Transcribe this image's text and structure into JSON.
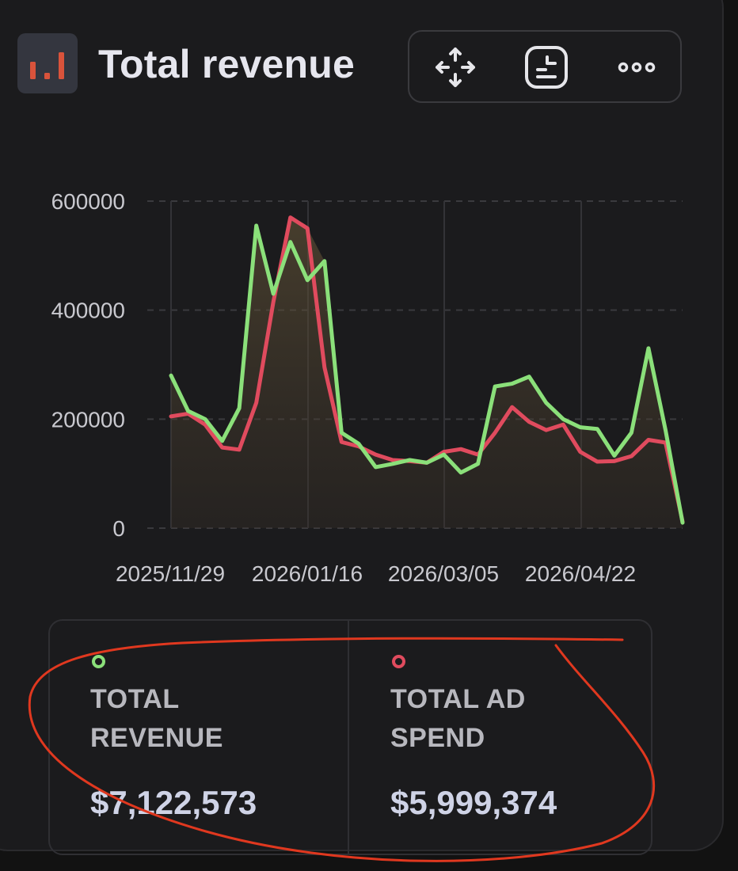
{
  "header": {
    "title": "Total revenue",
    "icon": "bar-chart-icon",
    "icon_bg": "#34363f",
    "icon_color": "#d9533b"
  },
  "toolbar": {
    "icons": [
      "move-icon",
      "chart-settings-icon",
      "more-icon"
    ]
  },
  "chart_data": {
    "type": "line",
    "title": "",
    "xlabel": "",
    "ylabel": "",
    "ylim": [
      0,
      600000
    ],
    "yticks": [
      "600000",
      "400000",
      "200000",
      "0"
    ],
    "xticks": [
      "2025/11/29",
      "2026/01/16",
      "2026/03/05",
      "2026/04/22"
    ],
    "grid": true,
    "series": [
      {
        "name": "TOTAL REVENUE",
        "color": "#8be07a",
        "values": [
          280000,
          215000,
          200000,
          160000,
          220000,
          555000,
          430000,
          525000,
          455000,
          490000,
          175000,
          155000,
          112000,
          118000,
          125000,
          120000,
          135000,
          102000,
          118000,
          260000,
          265000,
          278000,
          230000,
          200000,
          185000,
          182000,
          133000,
          175000,
          330000,
          180000,
          10000
        ]
      },
      {
        "name": "TOTAL AD SPEND",
        "color": "#e04b5e",
        "values": [
          205000,
          210000,
          190000,
          148000,
          144000,
          230000,
          415000,
          570000,
          550000,
          295000,
          158000,
          150000,
          135000,
          125000,
          123000,
          120000,
          140000,
          145000,
          135000,
          175000,
          222000,
          195000,
          180000,
          190000,
          140000,
          122000,
          123000,
          132000,
          162000,
          157000,
          12000
        ]
      }
    ]
  },
  "legend": [
    {
      "label": "TOTAL\nREVENUE",
      "value": "$7,122,573",
      "color": "#8be07a"
    },
    {
      "label": "TOTAL AD\nSPEND",
      "value": "$5,999,374",
      "color": "#e04b5e"
    }
  ],
  "annotation_color": "#e0381f"
}
